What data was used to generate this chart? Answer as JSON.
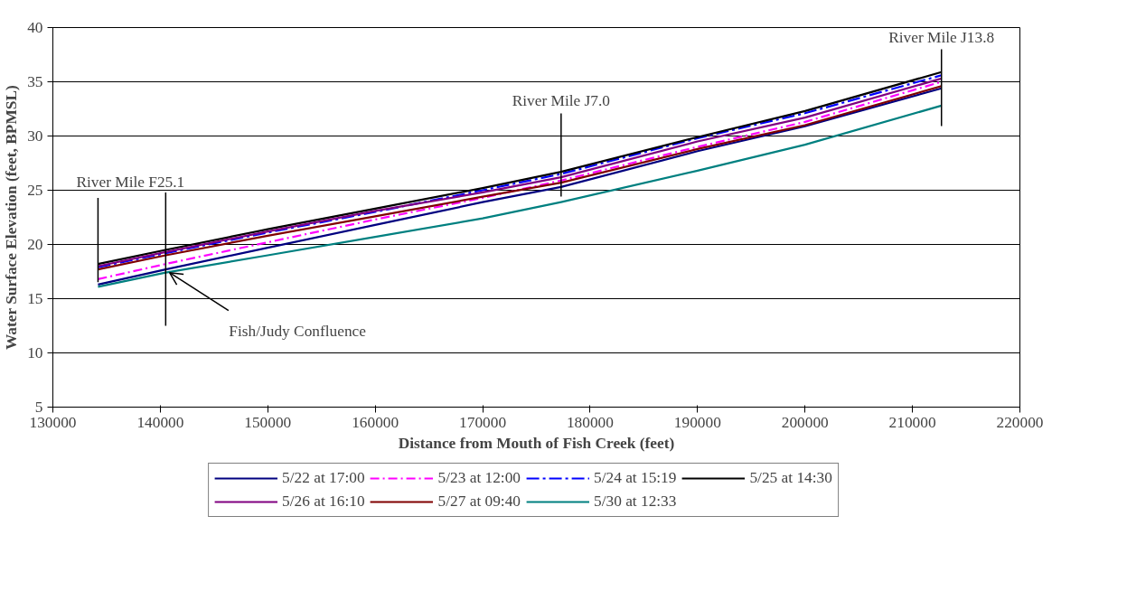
{
  "chart_data": {
    "type": "line",
    "xlabel": "Distance from Mouth of Fish Creek (feet)",
    "ylabel": "Water Surface Elevation (feet, BPMSL)",
    "x": [
      134200,
      140500,
      150000,
      160000,
      170000,
      177300,
      190000,
      200000,
      212700
    ],
    "series": [
      {
        "name": "5/22 at 17:00",
        "color": "#000080",
        "line_style": "solid",
        "values": [
          16.3,
          17.7,
          19.7,
          21.8,
          23.9,
          25.3,
          28.6,
          30.9,
          34.4
        ]
      },
      {
        "name": "5/23 at 12:00",
        "color": "#ff00ff",
        "line_style": "dashed",
        "values": [
          16.8,
          18.2,
          20.2,
          22.3,
          24.3,
          25.9,
          29.0,
          31.3,
          35.0
        ]
      },
      {
        "name": "5/24 at 15:19",
        "color": "#0000ff",
        "line_style": "dashed",
        "values": [
          17.9,
          19.2,
          21.1,
          23.0,
          25.0,
          26.5,
          29.8,
          32.1,
          35.6
        ]
      },
      {
        "name": "5/25 at 14:30",
        "color": "#000000",
        "line_style": "solid",
        "values": [
          18.2,
          19.5,
          21.4,
          23.3,
          25.2,
          26.7,
          29.9,
          32.3,
          35.9
        ]
      },
      {
        "name": "5/26 at 16:10",
        "color": "#800080",
        "line_style": "solid",
        "values": [
          18.0,
          19.3,
          21.2,
          23.1,
          24.8,
          26.2,
          29.5,
          31.7,
          35.3
        ]
      },
      {
        "name": "5/27 at 09:40",
        "color": "#800000",
        "line_style": "solid",
        "values": [
          17.7,
          19.0,
          20.8,
          22.6,
          24.4,
          25.7,
          28.8,
          31.0,
          34.6
        ]
      },
      {
        "name": "5/30 at 12:33",
        "color": "#008080",
        "line_style": "solid",
        "values": [
          16.1,
          17.4,
          19.0,
          20.7,
          22.4,
          23.9,
          26.8,
          29.2,
          32.8
        ]
      }
    ],
    "xlim": [
      130000,
      220000
    ],
    "xticks": [
      130000,
      140000,
      150000,
      160000,
      170000,
      180000,
      190000,
      200000,
      210000,
      220000
    ],
    "ylim": [
      5,
      40
    ],
    "yticks": [
      5,
      10,
      15,
      20,
      25,
      30,
      35,
      40
    ],
    "grid": "y",
    "legend": "bottom",
    "ref_lines": [
      {
        "axis": "x",
        "value": 134200,
        "label": "River Mile F25.1"
      },
      {
        "axis": "x",
        "value": 177300,
        "label": "River Mile J7.0"
      },
      {
        "axis": "x",
        "value": 212700,
        "label": "River Mile J13.8"
      },
      {
        "axis": "x",
        "value": 140500,
        "label": "Fish/Judy Confluence"
      }
    ]
  }
}
